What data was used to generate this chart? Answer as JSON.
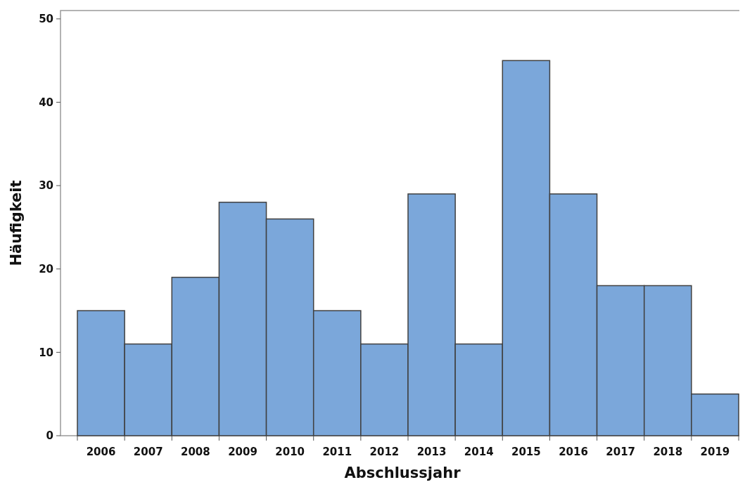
{
  "chart_data": {
    "type": "bar",
    "xlabel": "Abschlussjahr",
    "ylabel": "Häufigkeit",
    "categories": [
      "2006",
      "2007",
      "2008",
      "2009",
      "2010",
      "2011",
      "2012",
      "2013",
      "2014",
      "2015",
      "2016",
      "2017",
      "2018",
      "2019"
    ],
    "values": [
      15,
      11,
      19,
      28,
      26,
      15,
      11,
      29,
      11,
      45,
      29,
      18,
      18,
      5
    ],
    "color": "#7ba7da",
    "ylim": [
      0,
      51
    ],
    "yticks": [
      0,
      10,
      20,
      30,
      40,
      50
    ],
    "grid": false
  }
}
